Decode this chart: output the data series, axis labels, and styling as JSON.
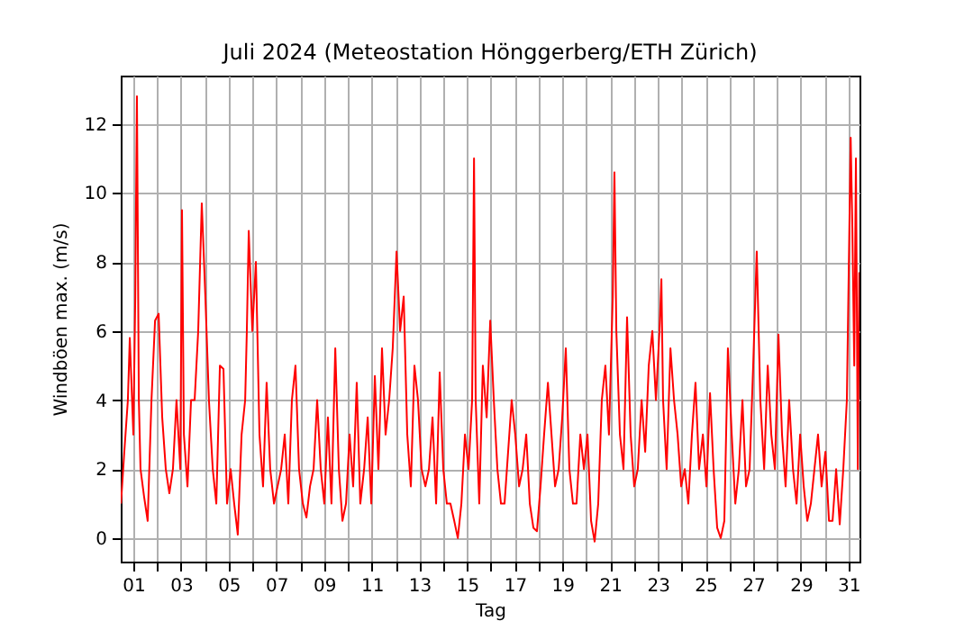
{
  "chart_data": {
    "type": "line",
    "title": "Juli 2024  (Meteostation Hönggerberg/ETH Zürich)",
    "xlabel": "Tag",
    "ylabel": "Windböen max. (m/s)",
    "xlim": [
      0.47,
      31.46
    ],
    "ylim": [
      -0.68,
      13.4
    ],
    "xticks": [
      {
        "value": 1,
        "label": "01"
      },
      {
        "value": 2,
        "label": null
      },
      {
        "value": 3,
        "label": "03"
      },
      {
        "value": 4,
        "label": null
      },
      {
        "value": 5,
        "label": "05"
      },
      {
        "value": 6,
        "label": null
      },
      {
        "value": 7,
        "label": "07"
      },
      {
        "value": 8,
        "label": null
      },
      {
        "value": 9,
        "label": "09"
      },
      {
        "value": 10,
        "label": null
      },
      {
        "value": 11,
        "label": "11"
      },
      {
        "value": 12,
        "label": null
      },
      {
        "value": 13,
        "label": "13"
      },
      {
        "value": 14,
        "label": null
      },
      {
        "value": 15,
        "label": "15"
      },
      {
        "value": 16,
        "label": null
      },
      {
        "value": 17,
        "label": "17"
      },
      {
        "value": 18,
        "label": null
      },
      {
        "value": 19,
        "label": "19"
      },
      {
        "value": 20,
        "label": null
      },
      {
        "value": 21,
        "label": "21"
      },
      {
        "value": 22,
        "label": null
      },
      {
        "value": 23,
        "label": "23"
      },
      {
        "value": 24,
        "label": null
      },
      {
        "value": 25,
        "label": "25"
      },
      {
        "value": 26,
        "label": null
      },
      {
        "value": 27,
        "label": "27"
      },
      {
        "value": 28,
        "label": null
      },
      {
        "value": 29,
        "label": "29"
      },
      {
        "value": 30,
        "label": null
      },
      {
        "value": 31,
        "label": "31"
      }
    ],
    "yticks": [
      0,
      2,
      4,
      6,
      8,
      10,
      12
    ],
    "grid": true,
    "x": [
      0.48,
      0.62,
      0.77,
      0.85,
      1.0,
      1.08,
      1.15,
      1.23,
      1.3,
      1.45,
      1.6,
      1.76,
      1.91,
      2.06,
      2.21,
      2.36,
      2.51,
      2.66,
      2.81,
      2.97,
      3.04,
      3.12,
      3.27,
      3.42,
      3.57,
      3.72,
      3.87,
      4.02,
      4.17,
      4.33,
      4.48,
      4.63,
      4.78,
      4.93,
      5.08,
      5.23,
      5.38,
      5.54,
      5.69,
      5.76,
      5.84,
      5.99,
      6.14,
      6.29,
      6.44,
      6.59,
      6.74,
      6.9,
      7.05,
      7.2,
      7.35,
      7.5,
      7.65,
      7.8,
      7.95,
      8.11,
      8.26,
      8.41,
      8.56,
      8.71,
      8.86,
      9.01,
      9.16,
      9.31,
      9.47,
      9.62,
      9.77,
      9.92,
      10.07,
      10.22,
      10.37,
      10.52,
      10.68,
      10.83,
      10.98,
      11.13,
      11.28,
      11.43,
      11.58,
      11.73,
      11.88,
      12.04,
      12.19,
      12.34,
      12.49,
      12.64,
      12.79,
      12.94,
      13.09,
      13.25,
      13.4,
      13.55,
      13.7,
      13.85,
      14.0,
      14.15,
      14.3,
      14.46,
      14.61,
      14.76,
      14.91,
      15.06,
      15.21,
      15.29,
      15.36,
      15.51,
      15.66,
      15.82,
      15.97,
      16.12,
      16.27,
      16.42,
      16.57,
      16.72,
      16.87,
      17.02,
      17.18,
      17.33,
      17.48,
      17.63,
      17.78,
      17.93,
      18.08,
      18.23,
      18.39,
      18.54,
      18.69,
      18.84,
      18.99,
      19.14,
      19.29,
      19.44,
      19.59,
      19.75,
      19.9,
      20.05,
      20.2,
      20.35,
      20.5,
      20.65,
      20.8,
      20.95,
      21.11,
      21.18,
      21.26,
      21.41,
      21.56,
      21.71,
      21.86,
      22.01,
      22.16,
      22.32,
      22.47,
      22.62,
      22.77,
      22.92,
      23.07,
      23.15,
      23.22,
      23.37,
      23.53,
      23.68,
      23.83,
      23.98,
      24.13,
      24.28,
      24.43,
      24.58,
      24.73,
      24.89,
      25.04,
      25.19,
      25.34,
      25.49,
      25.64,
      25.79,
      25.94,
      26.1,
      26.25,
      26.4,
      26.55,
      26.7,
      26.85,
      27.0,
      27.15,
      27.3,
      27.46,
      27.61,
      27.76,
      27.91,
      28.06,
      28.21,
      28.36,
      28.51,
      28.67,
      28.82,
      28.97,
      29.12,
      29.27,
      29.42,
      29.57,
      29.72,
      29.87,
      30.03,
      30.18,
      30.33,
      30.48,
      30.63,
      30.78,
      30.93,
      31.09,
      31.16,
      31.24,
      31.31,
      31.39,
      31.45
    ],
    "series": [
      {
        "color": "#ff0000",
        "values": [
          1.0,
          2.5,
          4.0,
          5.8,
          3.0,
          7.0,
          12.8,
          4.0,
          2.0,
          1.2,
          0.5,
          4.0,
          6.3,
          6.5,
          3.5,
          2.0,
          1.3,
          2.0,
          4.0,
          2.0,
          9.5,
          3.0,
          1.5,
          4.0,
          4.0,
          6.0,
          9.7,
          7.0,
          4.0,
          2.0,
          1.0,
          5.0,
          4.9,
          1.0,
          2.0,
          1.0,
          0.1,
          3.0,
          4.0,
          6.0,
          8.9,
          6.0,
          8.0,
          3.0,
          1.5,
          4.5,
          2.0,
          1.0,
          1.5,
          2.0,
          3.0,
          1.0,
          4.0,
          5.0,
          2.0,
          1.0,
          0.6,
          1.5,
          2.0,
          4.0,
          2.0,
          1.0,
          3.5,
          1.0,
          5.5,
          2.0,
          0.5,
          1.0,
          3.0,
          1.5,
          4.5,
          1.0,
          2.0,
          3.5,
          1.0,
          4.7,
          2.0,
          5.5,
          3.0,
          4.0,
          5.5,
          8.3,
          6.0,
          7.0,
          3.0,
          1.5,
          5.0,
          4.0,
          2.0,
          1.5,
          2.0,
          3.5,
          1.0,
          4.8,
          2.0,
          1.0,
          1.0,
          0.5,
          0.0,
          1.0,
          3.0,
          2.0,
          4.0,
          11.0,
          4.0,
          1.0,
          5.0,
          3.5,
          6.3,
          4.0,
          2.0,
          1.0,
          1.0,
          2.5,
          4.0,
          3.0,
          1.5,
          2.0,
          3.0,
          1.0,
          0.3,
          0.2,
          1.5,
          3.0,
          4.5,
          3.0,
          1.5,
          2.0,
          3.5,
          5.5,
          2.0,
          1.0,
          1.0,
          3.0,
          2.0,
          3.0,
          0.5,
          -0.1,
          1.0,
          4.0,
          5.0,
          3.0,
          7.0,
          10.6,
          6.0,
          3.0,
          2.0,
          6.4,
          3.0,
          1.5,
          2.0,
          4.0,
          2.5,
          5.0,
          6.0,
          4.0,
          6.0,
          7.5,
          4.0,
          2.0,
          5.5,
          4.0,
          3.0,
          1.5,
          2.0,
          1.0,
          3.0,
          4.5,
          2.0,
          3.0,
          1.5,
          4.2,
          2.0,
          0.3,
          0.0,
          0.5,
          5.5,
          3.0,
          1.0,
          2.0,
          4.0,
          1.5,
          2.0,
          5.0,
          8.3,
          4.0,
          2.0,
          5.0,
          3.0,
          2.0,
          5.9,
          3.0,
          1.5,
          4.0,
          2.0,
          1.0,
          3.0,
          1.5,
          0.5,
          1.0,
          2.0,
          3.0,
          1.5,
          2.5,
          0.5,
          0.5,
          2.0,
          0.4,
          2.0,
          4.0,
          11.6,
          9.0,
          5.0,
          11.0,
          2.0,
          7.7
        ]
      }
    ]
  }
}
